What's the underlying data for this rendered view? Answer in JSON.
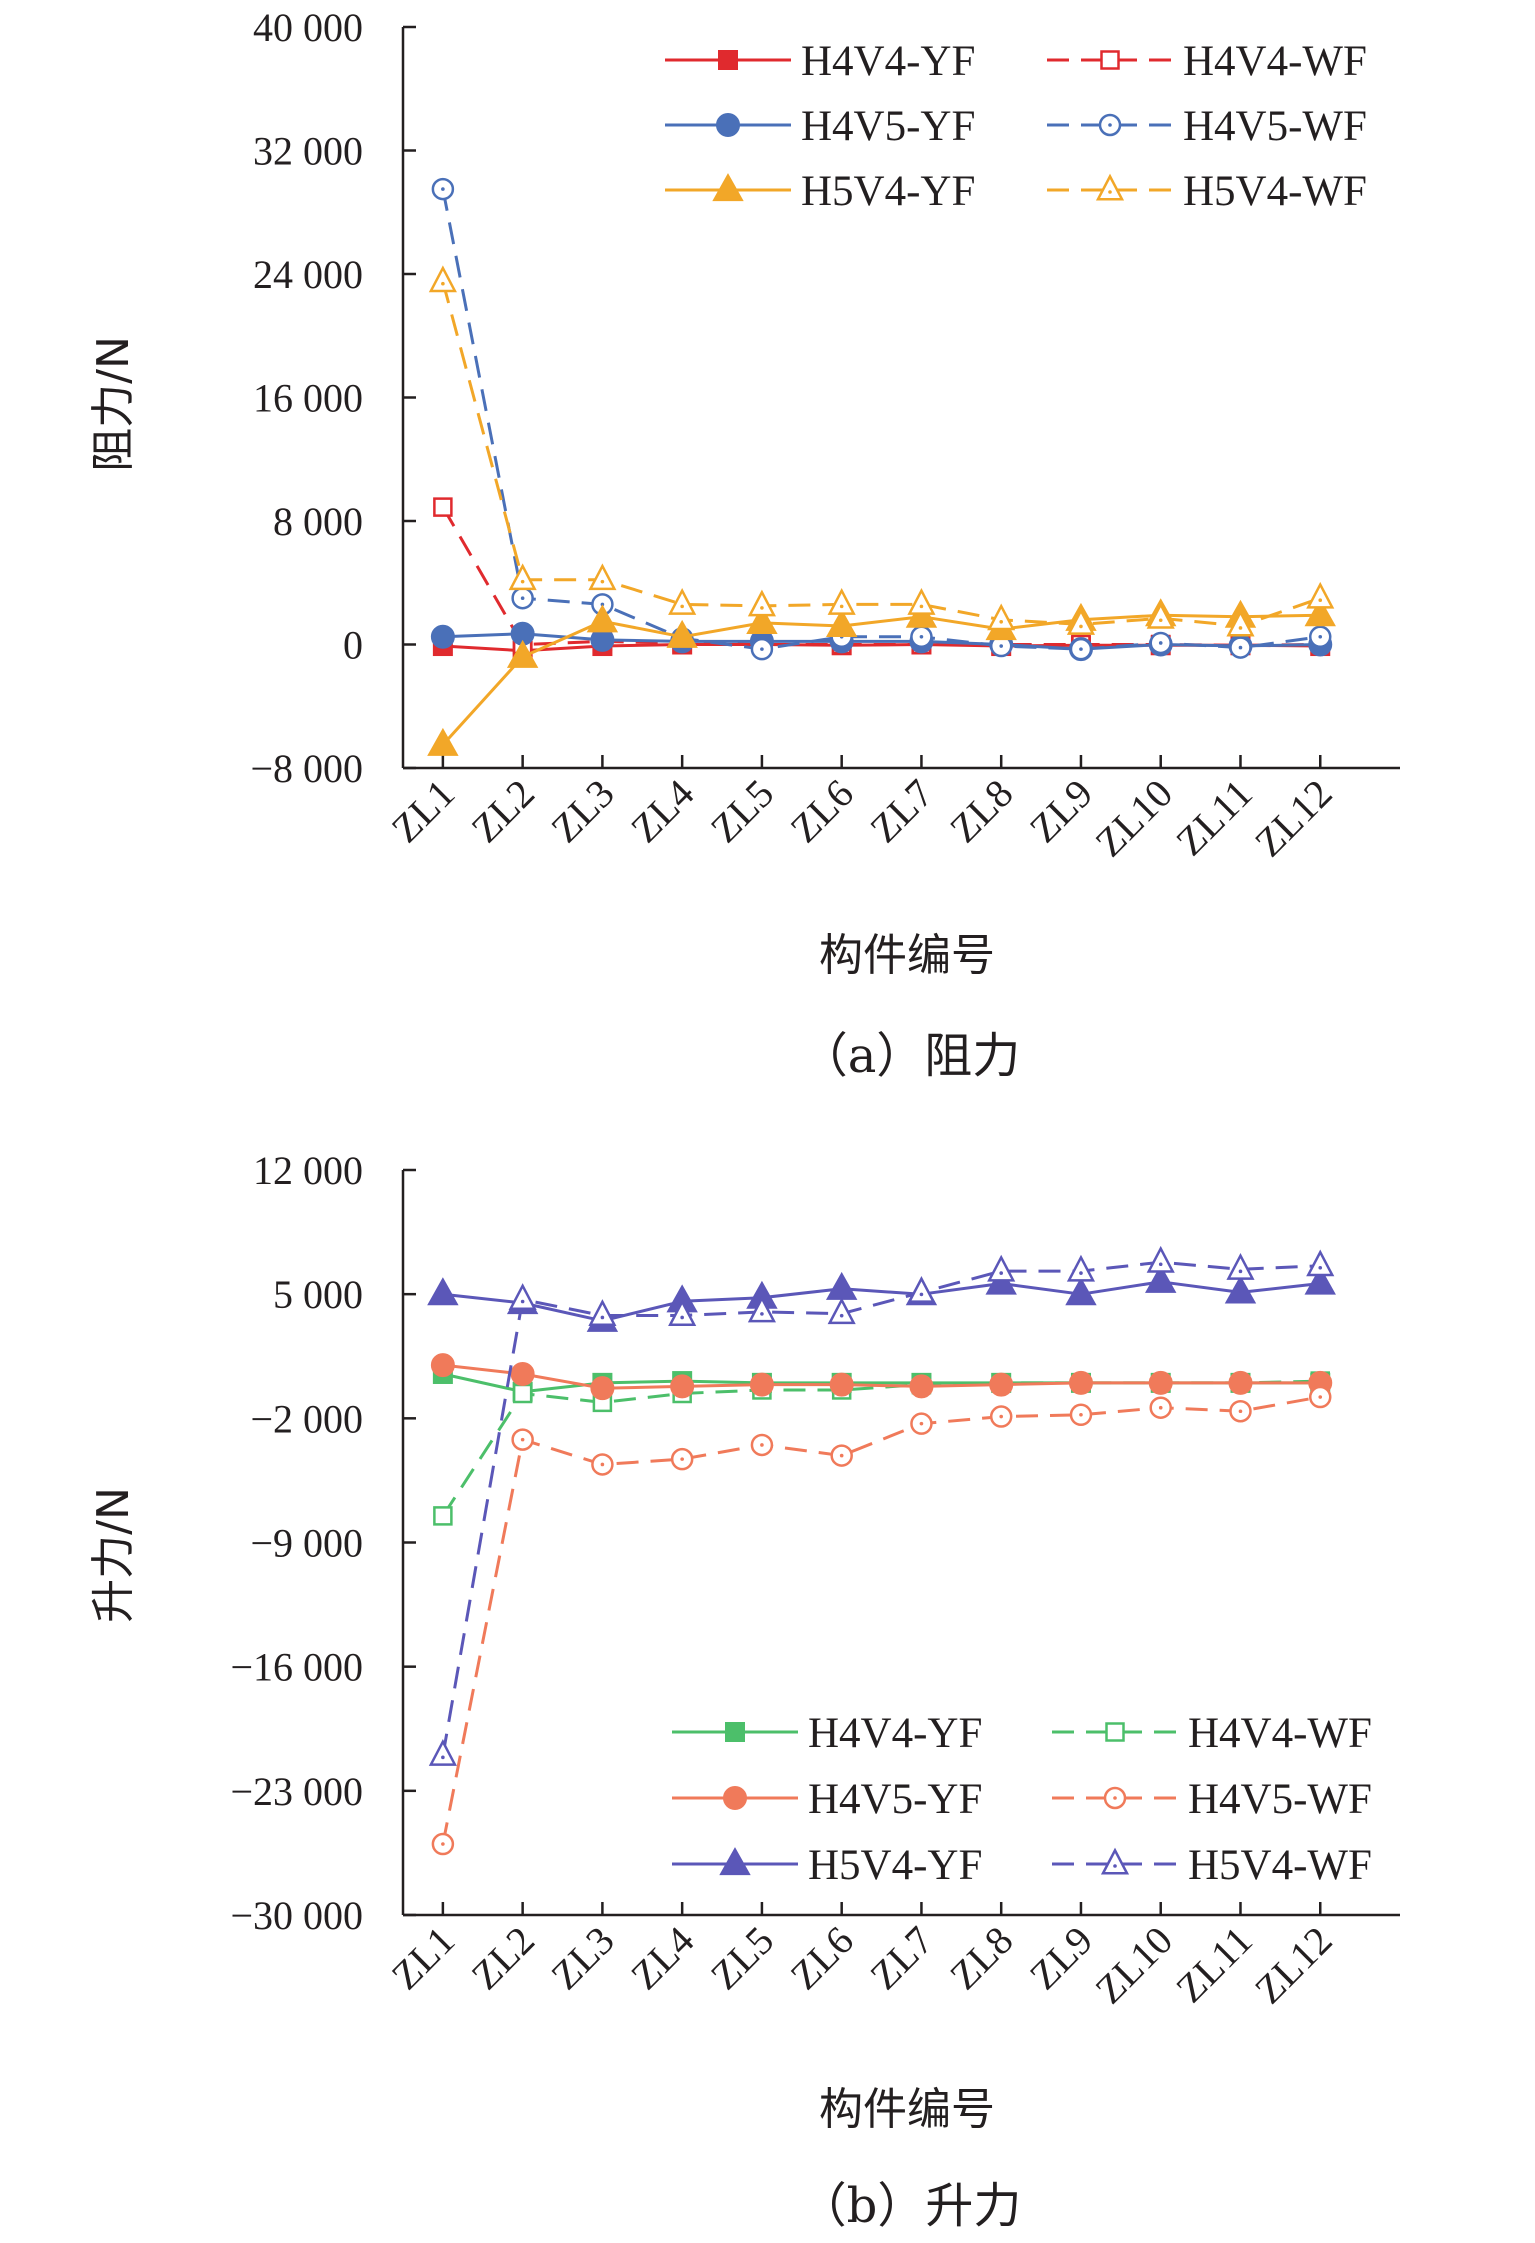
{
  "chart_data": [
    {
      "type": "line",
      "caption": "（a）阻力",
      "xlabel": "构件编号",
      "ylabel": "阻力/N",
      "ylim": [
        -8000,
        40000
      ],
      "yticks": [
        -8000,
        0,
        8000,
        16000,
        24000,
        32000,
        40000
      ],
      "ytick_labels": [
        "−8 000",
        "0",
        "8 000",
        "16 000",
        "24 000",
        "32 000",
        "40 000"
      ],
      "categories": [
        "ZL1",
        "ZL2",
        "ZL3",
        "ZL4",
        "ZL5",
        "ZL6",
        "ZL7",
        "ZL8",
        "ZL9",
        "ZL10",
        "ZL11",
        "ZL12"
      ],
      "legend_position": "top-right",
      "grid": false,
      "series": [
        {
          "name": "H4V4-YF",
          "color": "#e02a2e",
          "marker": "square",
          "filled": true,
          "dashed": false,
          "values": [
            -100,
            -400,
            -100,
            0,
            0,
            -50,
            0,
            -100,
            -50,
            -50,
            -50,
            -100
          ]
        },
        {
          "name": "H4V4-WF",
          "color": "#e02a2e",
          "marker": "square",
          "filled": false,
          "dashed": true,
          "values": [
            8900,
            0,
            200,
            100,
            0,
            0,
            0,
            0,
            0,
            0,
            -50,
            0
          ]
        },
        {
          "name": "H4V5-YF",
          "color": "#4a70b8",
          "marker": "circle",
          "filled": true,
          "dashed": false,
          "values": [
            500,
            700,
            300,
            200,
            200,
            200,
            200,
            0,
            -300,
            0,
            -100,
            0
          ]
        },
        {
          "name": "H4V5-WF",
          "color": "#4a70b8",
          "marker": "circle",
          "filled": false,
          "dashed": true,
          "values": [
            29500,
            3000,
            2600,
            400,
            -300,
            500,
            500,
            -100,
            -300,
            100,
            -200,
            500
          ]
        },
        {
          "name": "H5V4-YF",
          "color": "#f2a728",
          "marker": "triangle",
          "filled": true,
          "dashed": false,
          "values": [
            -6500,
            -800,
            1500,
            500,
            1400,
            1200,
            1800,
            1000,
            1600,
            1900,
            1800,
            1900
          ]
        },
        {
          "name": "H5V4-WF",
          "color": "#f2a728",
          "marker": "triangle",
          "filled": false,
          "dashed": true,
          "values": [
            23500,
            4200,
            4200,
            2600,
            2500,
            2600,
            2600,
            1600,
            1300,
            1700,
            1200,
            3000
          ]
        }
      ]
    },
    {
      "type": "line",
      "caption": "（b）升力",
      "xlabel": "构件编号",
      "ylabel": "升力/N",
      "ylim": [
        -30000,
        12000
      ],
      "yticks": [
        -30000,
        -23000,
        -16000,
        -9000,
        -2000,
        5000,
        12000
      ],
      "ytick_labels": [
        "−30 000",
        "−23 000",
        "−16 000",
        "−9 000",
        "−2 000",
        "5 000",
        "12 000"
      ],
      "categories": [
        "ZL1",
        "ZL2",
        "ZL3",
        "ZL4",
        "ZL5",
        "ZL6",
        "ZL7",
        "ZL8",
        "ZL9",
        "ZL10",
        "ZL11",
        "ZL12"
      ],
      "legend_position": "bottom-right",
      "grid": false,
      "series": [
        {
          "name": "H4V4-YF",
          "color": "#4cbf6a",
          "marker": "square",
          "filled": true,
          "dashed": false,
          "values": [
            500,
            -500,
            0,
            100,
            0,
            0,
            0,
            0,
            0,
            0,
            0,
            0
          ]
        },
        {
          "name": "H4V4-WF",
          "color": "#4cbf6a",
          "marker": "square",
          "filled": false,
          "dashed": true,
          "values": [
            -7500,
            -600,
            -1100,
            -600,
            -400,
            -400,
            -100,
            0,
            0,
            0,
            0,
            100
          ]
        },
        {
          "name": "H4V5-YF",
          "color": "#f07a5a",
          "marker": "circle",
          "filled": true,
          "dashed": false,
          "values": [
            1000,
            500,
            -300,
            -200,
            -100,
            -100,
            -200,
            -100,
            0,
            0,
            0,
            0
          ]
        },
        {
          "name": "H4V5-WF",
          "color": "#f07a5a",
          "marker": "circle",
          "filled": false,
          "dashed": true,
          "values": [
            -26000,
            -3200,
            -4600,
            -4300,
            -3500,
            -4100,
            -2300,
            -1900,
            -1800,
            -1400,
            -1600,
            -800
          ]
        },
        {
          "name": "H5V4-YF",
          "color": "#5b57b8",
          "marker": "triangle",
          "filled": true,
          "dashed": false,
          "values": [
            5000,
            4500,
            3500,
            4600,
            4800,
            5300,
            5000,
            5600,
            5000,
            5700,
            5100,
            5600
          ]
        },
        {
          "name": "H5V4-WF",
          "color": "#5b57b8",
          "marker": "triangle",
          "filled": false,
          "dashed": true,
          "values": [
            -21000,
            4700,
            3800,
            3800,
            4000,
            3900,
            5100,
            6300,
            6300,
            6800,
            6400,
            6600
          ]
        }
      ]
    }
  ]
}
